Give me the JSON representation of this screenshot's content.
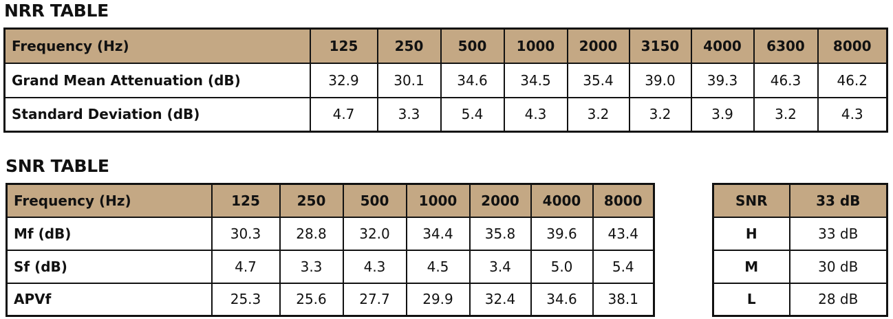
{
  "nrr": {
    "title": "NRR TABLE",
    "header_label": "Frequency (Hz)",
    "frequencies": [
      "125",
      "250",
      "500",
      "1000",
      "2000",
      "3150",
      "4000",
      "6300",
      "8000"
    ],
    "rows": [
      {
        "label": "Grand Mean Attenuation (dB)",
        "values": [
          "32.9",
          "30.1",
          "34.6",
          "34.5",
          "35.4",
          "39.0",
          "39.3",
          "46.3",
          "46.2"
        ]
      },
      {
        "label": "Standard Deviation (dB)",
        "values": [
          "4.7",
          "3.3",
          "5.4",
          "4.3",
          "3.2",
          "3.2",
          "3.9",
          "3.2",
          "4.3"
        ]
      }
    ]
  },
  "snr": {
    "title": "SNR TABLE",
    "header_label": "Frequency (Hz)",
    "frequencies": [
      "125",
      "250",
      "500",
      "1000",
      "2000",
      "4000",
      "8000"
    ],
    "rows": [
      {
        "label": "Mf (dB)",
        "values": [
          "30.3",
          "28.8",
          "32.0",
          "34.4",
          "35.8",
          "39.6",
          "43.4"
        ]
      },
      {
        "label": "Sf (dB)",
        "values": [
          "4.7",
          "3.3",
          "4.3",
          "4.5",
          "3.4",
          "5.0",
          "5.4"
        ]
      },
      {
        "label": "APVf",
        "values": [
          "25.3",
          "25.6",
          "27.7",
          "29.9",
          "32.4",
          "34.6",
          "38.1"
        ]
      }
    ]
  },
  "snr_rating": {
    "header": [
      "SNR",
      "33 dB"
    ],
    "rows": [
      {
        "label": "H",
        "value": "33 dB"
      },
      {
        "label": "M",
        "value": "30 dB"
      },
      {
        "label": "L",
        "value": "28 dB"
      }
    ]
  },
  "colors": {
    "header_fill": "#c4a884",
    "border": "#111111",
    "text": "#111111"
  }
}
